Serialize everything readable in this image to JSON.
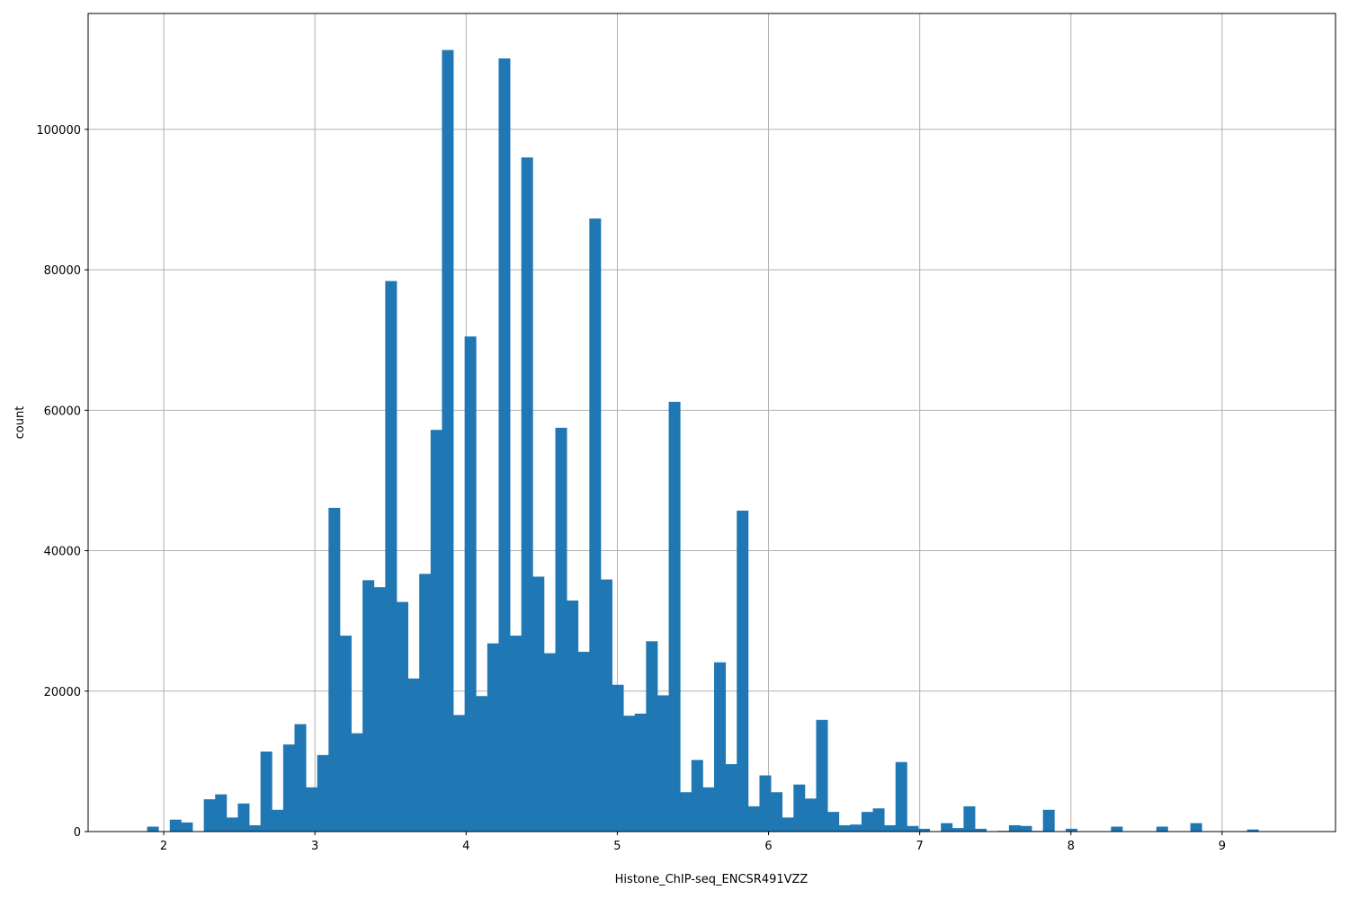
{
  "chart_data": {
    "type": "bar",
    "title": "",
    "xlabel": "Histone_ChIP-seq_ENCSR491VZZ",
    "ylabel": "count",
    "xlim": [
      1.5,
      9.75
    ],
    "ylim": [
      0,
      116500
    ],
    "grid": true,
    "bar_color": "#1f77b4",
    "xticks": [
      2,
      3,
      4,
      5,
      6,
      7,
      8,
      9
    ],
    "xtick_labels": [
      "2",
      "3",
      "4",
      "5",
      "6",
      "7",
      "8",
      "9"
    ],
    "yticks": [
      0,
      20000,
      40000,
      60000,
      80000,
      100000
    ],
    "ytick_labels": [
      "0",
      "20000",
      "40000",
      "60000",
      "80000",
      "100000"
    ],
    "bin_start": 1.89,
    "bin_width": 0.075,
    "values": [
      700,
      0,
      1700,
      1300,
      0,
      4600,
      5300,
      2000,
      4000,
      900,
      11400,
      3100,
      12400,
      15300,
      6300,
      10900,
      46100,
      27900,
      14000,
      35800,
      34800,
      78400,
      32700,
      21800,
      36700,
      57200,
      111300,
      16600,
      70500,
      19300,
      26800,
      110100,
      27900,
      96000,
      36300,
      25400,
      57500,
      32900,
      25600,
      87300,
      35900,
      20900,
      16500,
      16800,
      27100,
      19400,
      61200,
      5600,
      10200,
      6300,
      24100,
      9600,
      45700,
      3600,
      8000,
      5600,
      2000,
      6700,
      4700,
      15900,
      2800,
      900,
      1000,
      2800,
      3300,
      900,
      9900,
      800,
      400,
      0,
      1200,
      500,
      3600,
      400,
      0,
      100,
      900,
      800,
      100,
      3100,
      0,
      400,
      0,
      0,
      0,
      700,
      0,
      0,
      0,
      700,
      0,
      0,
      1200,
      0,
      0,
      0,
      0,
      300,
      0,
      0
    ]
  }
}
